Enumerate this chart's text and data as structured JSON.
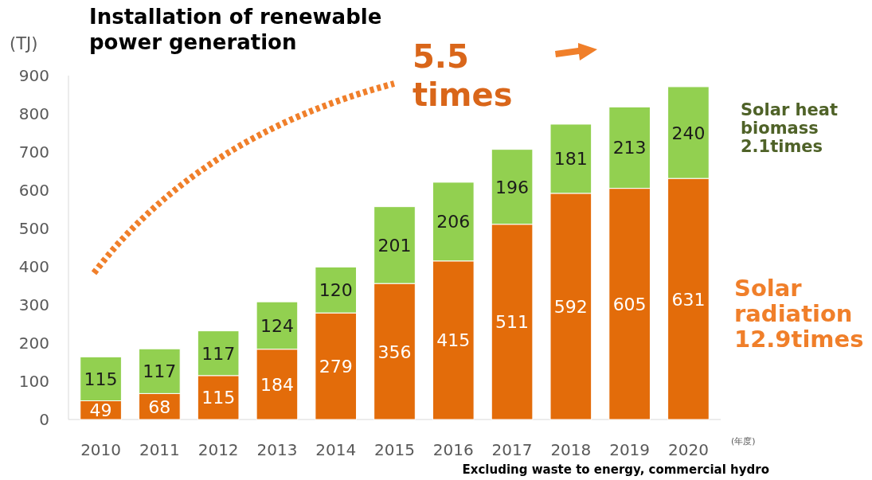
{
  "chart_data": {
    "type": "bar",
    "stacked": true,
    "title": "Installation of renewable power generation",
    "ylabel": "(TJ)",
    "xlabel": "(年度)",
    "categories": [
      "2010",
      "2011",
      "2012",
      "2013",
      "2014",
      "2015",
      "2016",
      "2017",
      "2018",
      "2019",
      "2020"
    ],
    "series": [
      {
        "name": "Solar radiation",
        "color": "#e36c0a",
        "values": [
          49,
          68,
          115,
          184,
          279,
          356,
          415,
          511,
          592,
          605,
          631
        ]
      },
      {
        "name": "Solar heat biomass",
        "color": "#92d050",
        "values": [
          115,
          117,
          117,
          124,
          120,
          201,
          206,
          196,
          181,
          213,
          240
        ]
      }
    ],
    "ylim": [
      0,
      900
    ],
    "yticks": [
      0,
      100,
      200,
      300,
      400,
      500,
      600,
      700,
      800,
      900
    ],
    "data_labels": true,
    "legend": false,
    "grid": false,
    "annotations": [
      "5.5 times",
      "12.9times",
      "2.1times",
      "Excluding waste to energy, commercial hydro"
    ]
  }
}
